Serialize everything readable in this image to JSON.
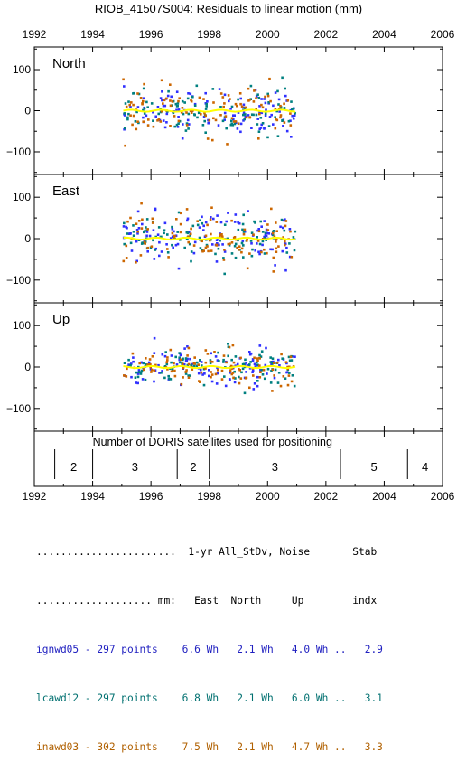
{
  "title": "RIOB_41507S004: Residuals to linear motion (mm)",
  "x_axis": {
    "min": 1992,
    "max": 2006,
    "ticks": [
      "1992",
      "1994",
      "1996",
      "1998",
      "2000",
      "2002",
      "2004",
      "2006"
    ]
  },
  "chart_data": {
    "type": "scatter",
    "panels": [
      {
        "label": "North",
        "ylim": [
          -155,
          155
        ],
        "yticks": [
          100,
          0,
          -100
        ],
        "data_start": 1995.05,
        "data_end": 2000.95,
        "spread": 28
      },
      {
        "label": "East",
        "ylim": [
          -155,
          155
        ],
        "yticks": [
          100,
          0,
          -100
        ],
        "data_start": 1995.05,
        "data_end": 2000.95,
        "spread": 30
      },
      {
        "label": "Up",
        "ylim": [
          -155,
          155
        ],
        "yticks": [
          100,
          0,
          -100
        ],
        "data_start": 1995.05,
        "data_end": 2000.95,
        "spread": 22
      }
    ],
    "series": [
      {
        "name": "ignwd05",
        "color": "#3030ff",
        "points": 297
      },
      {
        "name": "lcawd12",
        "color": "#008080",
        "points": 297
      },
      {
        "name": "inawd03",
        "color": "#cc6600",
        "points": 302
      }
    ],
    "fit_color": "#ffff00",
    "satellites": {
      "caption": "Number of DORIS satellites used for positioning",
      "segments": [
        {
          "start": 1992.7,
          "end": 1994.0,
          "count": "2"
        },
        {
          "start": 1994.0,
          "end": 1996.9,
          "count": "3"
        },
        {
          "start": 1996.9,
          "end": 1998.0,
          "count": "2"
        },
        {
          "start": 1998.0,
          "end": 2002.5,
          "count": "3"
        },
        {
          "start": 2002.5,
          "end": 2004.8,
          "count": "5"
        },
        {
          "start": 2004.8,
          "end": 2006.0,
          "count": "4"
        }
      ]
    }
  },
  "stats_table": {
    "header1": ".......................  1-yr All_StDv, Noise       Stab",
    "header2": "................... mm:   East  North     Up        indx",
    "rows": [
      {
        "text": "ignwd05 - 297 points    6.6 Wh   2.1 Wh   4.0 Wh ..   2.9",
        "color": "#2020c0"
      },
      {
        "text": "lcawd12 - 297 points    6.8 Wh   2.1 Wh   6.0 Wh ..   3.1",
        "color": "#007070"
      },
      {
        "text": "inawd03 - 302 points    7.5 Wh   2.1 Wh   4.7 Wh ..   3.3",
        "color": "#b06000"
      }
    ]
  }
}
